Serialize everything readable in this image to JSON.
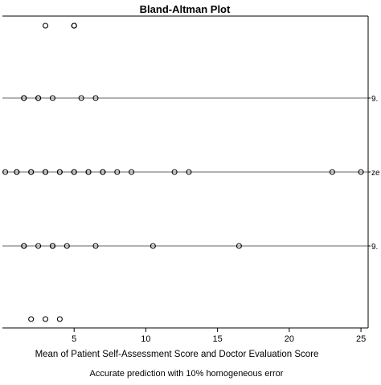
{
  "chart_data": {
    "type": "scatter",
    "title": "Bland-Altman Plot",
    "xlabel": "Mean of Patient Self-Assessment Score and Doctor Evaluation Score",
    "note": "Accurate prediction with 10% homogeneous error",
    "xlim": [
      0,
      25.5
    ],
    "x_ticks": [
      5,
      10,
      15,
      20,
      25
    ],
    "grid": false,
    "colors": {
      "axis": "#000000",
      "marker": "#000000",
      "reference": "#333333"
    },
    "reference_lines": [
      {
        "label": "9.",
        "row": 1
      },
      {
        "label": "ze",
        "row": 2
      },
      {
        "label": "9.",
        "row": 3
      }
    ],
    "rows": 5,
    "points": [
      {
        "row": 0,
        "x": [
          3,
          5,
          5
        ]
      },
      {
        "row": 1,
        "x": [
          1.5,
          1.5,
          2.5,
          2.5,
          3.5,
          5.5,
          6.5
        ]
      },
      {
        "row": 2,
        "x": [
          0.2,
          1,
          1,
          2,
          2,
          3,
          3,
          4,
          4,
          5,
          5,
          6,
          6,
          7,
          7,
          8,
          9,
          12,
          13,
          23,
          25
        ]
      },
      {
        "row": 3,
        "x": [
          1.5,
          1.5,
          2.5,
          3.5,
          3.5,
          4.5,
          6.5,
          10.5,
          16.5
        ]
      },
      {
        "row": 4,
        "x": [
          2,
          3,
          4
        ]
      }
    ]
  }
}
